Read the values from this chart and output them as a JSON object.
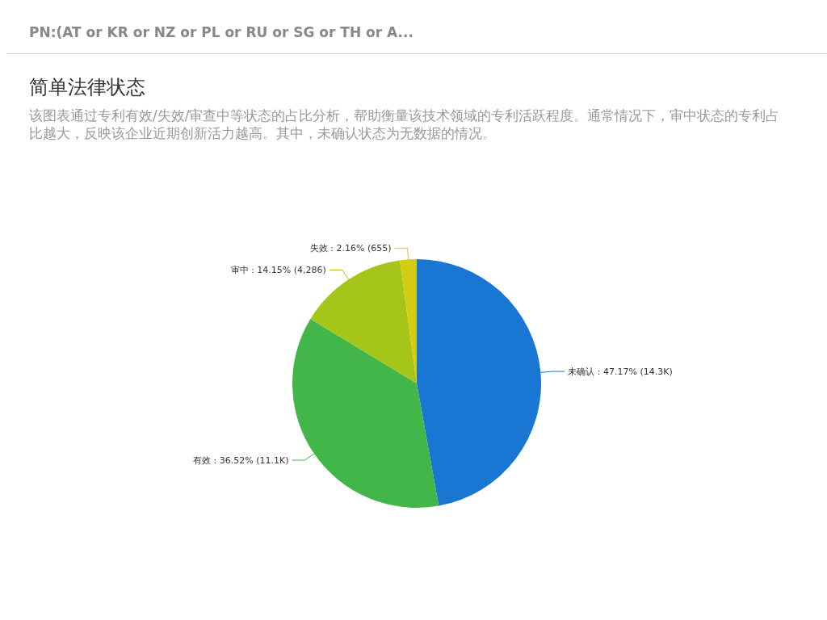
{
  "chart_data": {
    "type": "pie",
    "title": "简单法律状态",
    "subtitle": "该图表通过专利有效/失效/审查中等状态的占比分析，帮助衡量该技术领域的专利活跃程度。通常情况下，审中状态的专利占比越大，反映该企业近期创新活力越高。其中，未确认状态为无数据的情况。",
    "annotations": [
      "PN:(AT or KR or NZ or PL or RU or SG or TH or A..."
    ],
    "categories": [
      "未确认",
      "有效",
      "审中",
      "失效"
    ],
    "values": [
      47.17,
      36.52,
      14.15,
      2.16
    ],
    "value_labels": [
      "47.17% (14.3K)",
      "36.52% (11.1K)",
      "14.15% (4,286)",
      "2.16% (655)"
    ],
    "colors": [
      "#1976d2",
      "#43b649",
      "#a5c618",
      "#d4cc14"
    ]
  }
}
